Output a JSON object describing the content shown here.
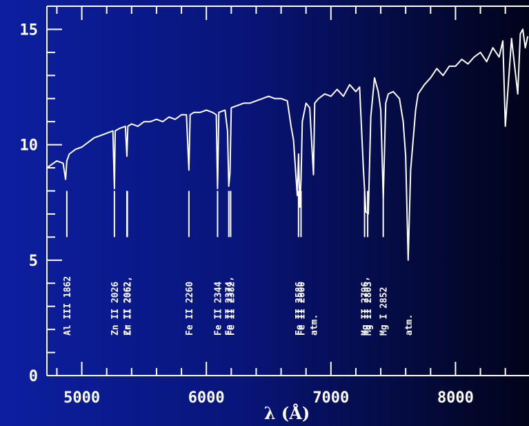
{
  "chart_data": {
    "type": "line",
    "title": "",
    "xlabel": "λ (Å)",
    "ylabel": "",
    "xlim": [
      4720,
      8590
    ],
    "ylim": [
      0,
      16
    ],
    "xticks": [
      5000,
      6000,
      7000,
      8000
    ],
    "yticks": [
      0,
      5,
      10,
      15
    ],
    "grid": false,
    "colors": {
      "background_left": "#0d1fa0",
      "background_right": "#01031a",
      "foreground": "#ffffff"
    },
    "series": [
      {
        "x": [
          4720,
          4800,
          4850,
          4870,
          4880,
          4900,
          4950,
          5000,
          5050,
          5100,
          5150,
          5200,
          5250,
          5262,
          5268,
          5300,
          5350,
          5362,
          5370,
          5400,
          5450,
          5500,
          5550,
          5600,
          5650,
          5700,
          5750,
          5800,
          5840,
          5860,
          5870,
          5900,
          5950,
          6000,
          6050,
          6080,
          6090,
          6100,
          6150,
          6170,
          6180,
          6190,
          6200,
          6250,
          6300,
          6350,
          6400,
          6450,
          6500,
          6550,
          6600,
          6650,
          6680,
          6700,
          6730,
          6740,
          6750,
          6760,
          6770,
          6800,
          6830,
          6860,
          6870,
          6900,
          6950,
          7000,
          7050,
          7100,
          7150,
          7200,
          7230,
          7260,
          7280,
          7300,
          7320,
          7350,
          7380,
          7400,
          7420,
          7440,
          7460,
          7500,
          7550,
          7580,
          7600,
          7620,
          7640,
          7680,
          7700,
          7750,
          7800,
          7850,
          7900,
          7950,
          8000,
          8050,
          8100,
          8150,
          8200,
          8250,
          8300,
          8350,
          8380,
          8400,
          8450,
          8500,
          8520,
          8540,
          8560,
          8580
        ],
        "y": [
          9.0,
          9.3,
          9.2,
          8.5,
          9.3,
          9.6,
          9.8,
          9.9,
          10.1,
          10.3,
          10.4,
          10.5,
          10.6,
          8.1,
          10.6,
          10.7,
          10.8,
          9.5,
          10.8,
          10.9,
          10.8,
          11.0,
          11.0,
          11.1,
          11.0,
          11.2,
          11.1,
          11.3,
          11.3,
          8.9,
          11.3,
          11.4,
          11.4,
          11.5,
          11.4,
          11.3,
          8.1,
          11.4,
          11.5,
          10.6,
          8.2,
          8.8,
          11.6,
          11.7,
          11.8,
          11.8,
          11.9,
          12.0,
          12.1,
          12.0,
          12.0,
          11.9,
          10.8,
          10.2,
          7.8,
          9.6,
          7.3,
          8.5,
          11.0,
          11.8,
          11.6,
          8.7,
          11.8,
          12.0,
          12.2,
          12.1,
          12.4,
          12.1,
          12.6,
          12.3,
          12.5,
          9.0,
          7.1,
          7.0,
          11.2,
          12.9,
          12.3,
          11.5,
          7.7,
          11.8,
          12.2,
          12.3,
          12.0,
          11.0,
          9.5,
          5.0,
          8.9,
          11.5,
          12.2,
          12.6,
          12.9,
          13.3,
          13.0,
          13.4,
          13.4,
          13.7,
          13.5,
          13.8,
          14.0,
          13.6,
          14.2,
          13.8,
          14.5,
          10.8,
          14.6,
          12.2,
          14.8,
          15.0,
          14.2,
          14.7
        ]
      }
    ],
    "annotations": [
      {
        "text": "Al III 1862",
        "x": 4880
      },
      {
        "text": "Zn II 2026",
        "x": 5262
      },
      {
        "text": "Cr II 2062,",
        "x": 5362
      },
      {
        "text": "Zn II 2062",
        "x": 5366
      },
      {
        "text": "Fe II 2260",
        "x": 5860
      },
      {
        "text": "Fe II 2344",
        "x": 6090
      },
      {
        "text": "Fe II 2374,",
        "x": 6180
      },
      {
        "text": "Fe II 2382",
        "x": 6195
      },
      {
        "text": "Fe II 2586",
        "x": 6740
      },
      {
        "text": "Fe II 2600",
        "x": 6760
      },
      {
        "text": "atm.",
        "x": 6860
      },
      {
        "text": "Mg II 2796,",
        "x": 7270
      },
      {
        "text": "Mg II 2803",
        "x": 7295
      },
      {
        "text": "Mg I 2852",
        "x": 7420
      },
      {
        "text": "atm.",
        "x": 7620
      }
    ]
  }
}
